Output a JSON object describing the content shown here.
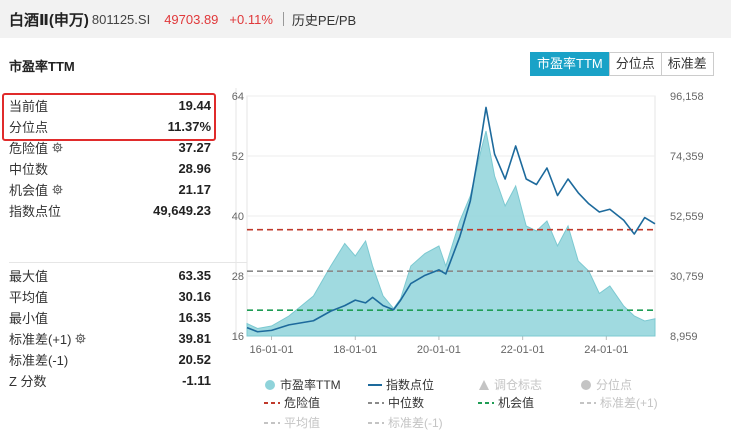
{
  "header": {
    "name": "白酒Ⅱ(申万)",
    "code": "801125.SI",
    "price": "49703.89",
    "change": "+0.11%",
    "history_link": "历史PE/PB"
  },
  "section_title": "市盈率TTM",
  "tabs": [
    {
      "label": "市盈率TTM",
      "active": true
    },
    {
      "label": "分位点",
      "active": false
    },
    {
      "label": "标准差",
      "active": false
    }
  ],
  "stats_top": [
    {
      "label": "当前值",
      "value": "19.44",
      "icon": ""
    },
    {
      "label": "分位点",
      "value": "11.37%",
      "icon": ""
    },
    {
      "label": "危险值",
      "value": "37.27",
      "icon": "gear-icon"
    },
    {
      "label": "中位数",
      "value": "28.96",
      "icon": ""
    },
    {
      "label": "机会值",
      "value": "21.17",
      "icon": "gear-icon"
    },
    {
      "label": "指数点位",
      "value": "49,649.23",
      "icon": ""
    }
  ],
  "stats_bottom": [
    {
      "label": "最大值",
      "value": "63.35",
      "icon": ""
    },
    {
      "label": "平均值",
      "value": "30.16",
      "icon": ""
    },
    {
      "label": "最小值",
      "value": "16.35",
      "icon": ""
    },
    {
      "label": "标准差(+1)",
      "value": "39.81",
      "icon": "gear-icon"
    },
    {
      "label": "标准差(-1)",
      "value": "20.52",
      "icon": ""
    },
    {
      "label": "Z 分数",
      "value": "-1.11",
      "icon": ""
    }
  ],
  "colors": {
    "accent": "#1aa2c7",
    "pe_fill": "#8fd3da",
    "index_line": "#1d6a9c",
    "danger": "#c0392b",
    "median": "#8a8a8a",
    "opportunity": "#1f9d55",
    "price_red": "#e0383a",
    "highlight_box": "#e02b2b"
  },
  "chart_data": {
    "type": "area",
    "left_axis": {
      "ticks": [
        "64",
        "52",
        "40",
        "28",
        "16"
      ],
      "ylim": [
        16,
        64
      ]
    },
    "right_axis": {
      "ticks": [
        "96,158",
        "74,359",
        "52,559",
        "30,759",
        "8,959"
      ],
      "ylim": [
        8959,
        96158
      ]
    },
    "x_ticks": [
      "16-01-01",
      "18-01-01",
      "20-01-01",
      "22-01-01",
      "24-01-01"
    ],
    "x_range": [
      "2015-06-01",
      "2025-03-01"
    ],
    "reference_lines": [
      {
        "name": "危险值",
        "value": 37.27,
        "style": "dashed",
        "color": "#c0392b"
      },
      {
        "name": "中位数",
        "value": 28.96,
        "style": "dashed",
        "color": "#8a8a8a"
      },
      {
        "name": "机会值",
        "value": 21.17,
        "style": "dashed",
        "color": "#1f9d55"
      }
    ],
    "series": [
      {
        "name": "市盈率TTM",
        "axis": "left",
        "kind": "area",
        "x": [
          "2015-06-01",
          "2015-09-01",
          "2016-01-01",
          "2016-06-01",
          "2017-01-01",
          "2017-06-01",
          "2017-10-01",
          "2018-01-01",
          "2018-04-01",
          "2018-06-01",
          "2018-09-01",
          "2018-12-01",
          "2019-02-01",
          "2019-05-01",
          "2019-09-01",
          "2020-01-01",
          "2020-03-01",
          "2020-07-01",
          "2020-10-01",
          "2021-01-01",
          "2021-02-15",
          "2021-05-01",
          "2021-08-01",
          "2021-11-01",
          "2022-02-01",
          "2022-05-01",
          "2022-08-01",
          "2022-11-01",
          "2023-02-01",
          "2023-05-01",
          "2023-08-01",
          "2023-11-01",
          "2024-02-01",
          "2024-06-01",
          "2024-09-01",
          "2024-12-01",
          "2025-03-01"
        ],
        "values": [
          18.5,
          17.5,
          18.0,
          20.0,
          24.0,
          30.0,
          34.5,
          32.0,
          35.0,
          30.0,
          24.0,
          21.5,
          23.5,
          30.0,
          32.5,
          34.0,
          30.0,
          39.0,
          44.0,
          53.0,
          57.0,
          48.0,
          42.0,
          46.0,
          38.0,
          37.0,
          39.0,
          34.0,
          38.0,
          31.0,
          29.0,
          24.5,
          26.0,
          22.0,
          20.0,
          19.0,
          19.44
        ]
      },
      {
        "name": "指数点位",
        "axis": "right",
        "kind": "line",
        "x": [
          "2015-06-01",
          "2015-09-01",
          "2016-01-01",
          "2016-06-01",
          "2017-01-01",
          "2017-06-01",
          "2017-10-01",
          "2018-01-01",
          "2018-04-01",
          "2018-06-01",
          "2018-09-01",
          "2018-12-01",
          "2019-02-01",
          "2019-05-01",
          "2019-09-01",
          "2020-01-01",
          "2020-03-01",
          "2020-07-01",
          "2020-10-01",
          "2021-01-01",
          "2021-02-15",
          "2021-05-01",
          "2021-08-01",
          "2021-11-01",
          "2022-02-01",
          "2022-05-01",
          "2022-08-01",
          "2022-11-01",
          "2023-02-01",
          "2023-05-01",
          "2023-08-01",
          "2023-11-01",
          "2024-02-01",
          "2024-06-01",
          "2024-09-01",
          "2024-12-01",
          "2025-03-01"
        ],
        "values": [
          12000,
          10500,
          11000,
          13000,
          14500,
          18000,
          20000,
          22000,
          21000,
          23000,
          20000,
          18500,
          22000,
          28000,
          31000,
          33000,
          31500,
          45000,
          58000,
          80000,
          92000,
          75000,
          66000,
          78000,
          66000,
          64000,
          70000,
          60000,
          66000,
          61000,
          57000,
          54000,
          55000,
          51000,
          46000,
          52000,
          49703.89
        ]
      }
    ],
    "legend": [
      {
        "label": "市盈率TTM",
        "kind": "circle",
        "color": "#8fd3da",
        "enabled": true
      },
      {
        "label": "指数点位",
        "kind": "line",
        "color": "#1d6a9c",
        "enabled": true
      },
      {
        "label": "调仓标志",
        "kind": "triangle",
        "color": "#c4c4c4",
        "enabled": false
      },
      {
        "label": "分位点",
        "kind": "circle",
        "color": "#c4c4c4",
        "enabled": false
      },
      {
        "label": "危险值",
        "kind": "dash",
        "color": "#c0392b",
        "enabled": true
      },
      {
        "label": "中位数",
        "kind": "dash",
        "color": "#8a8a8a",
        "enabled": true
      },
      {
        "label": "机会值",
        "kind": "dash",
        "color": "#1f9d55",
        "enabled": true
      },
      {
        "label": "标准差(+1)",
        "kind": "dash",
        "color": "#c4c4c4",
        "enabled": false
      },
      {
        "label": "平均值",
        "kind": "dash",
        "color": "#c4c4c4",
        "enabled": false
      },
      {
        "label": "标准差(-1)",
        "kind": "dash",
        "color": "#c4c4c4",
        "enabled": false
      }
    ]
  }
}
